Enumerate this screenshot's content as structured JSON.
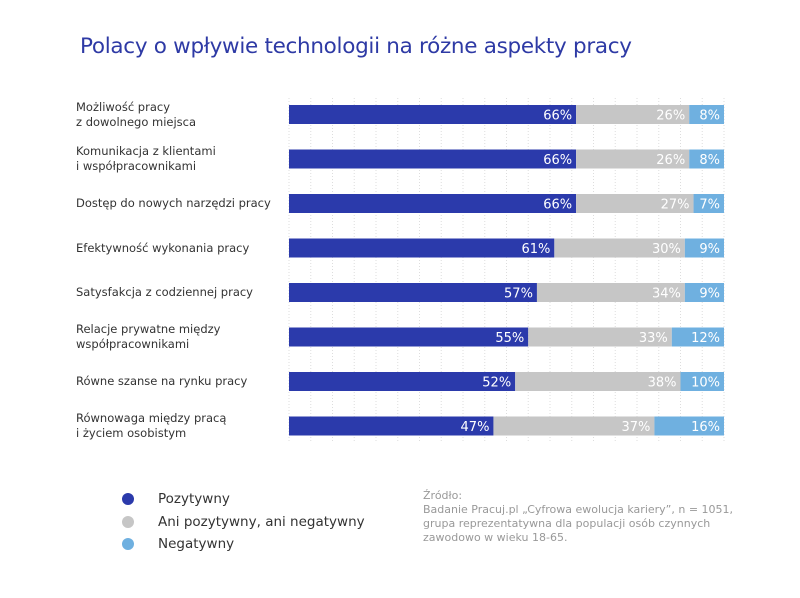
{
  "chart_data": {
    "type": "bar",
    "orientation": "horizontal",
    "stacked": true,
    "title": "Polacy o wpływie technologii na różne aspekty pracy",
    "categories": [
      [
        "Możliwość pracy",
        "z dowolnego miejsca"
      ],
      [
        "Komunikacja z klientami",
        "i współpracownikami"
      ],
      [
        "Dostęp do nowych narzędzi pracy"
      ],
      [
        "Efektywność wykonania pracy"
      ],
      [
        "Satysfakcja z codziennej pracy"
      ],
      [
        "Relacje prywatne między",
        "współpracownikami"
      ],
      [
        "Równe szanse na rynku pracy"
      ],
      [
        "Równowaga między pracą",
        "i życiem osobistym"
      ]
    ],
    "series": [
      {
        "name": "Pozytywny",
        "color": "#2b3aab",
        "values": [
          66,
          66,
          66,
          61,
          57,
          55,
          52,
          47
        ]
      },
      {
        "name": "Ani pozytywny, ani negatywny",
        "color": "#c6c6c6",
        "values": [
          26,
          26,
          27,
          30,
          34,
          33,
          38,
          37
        ]
      },
      {
        "name": "Negatywny",
        "color": "#6fb0e0",
        "values": [
          8,
          8,
          7,
          9,
          9,
          12,
          10,
          16
        ]
      }
    ],
    "value_suffix": "%",
    "xlim": [
      0,
      100
    ],
    "grid": true,
    "legend_position": "bottom-left"
  },
  "source": {
    "heading": "Źródło:",
    "lines": [
      "Badanie Pracuj.pl „Cyfrowa ewolucja kariery”, n = 1051,",
      "grupa reprezentatywna dla populacji osób czynnych",
      "zawodowo w wieku 18-65."
    ]
  }
}
